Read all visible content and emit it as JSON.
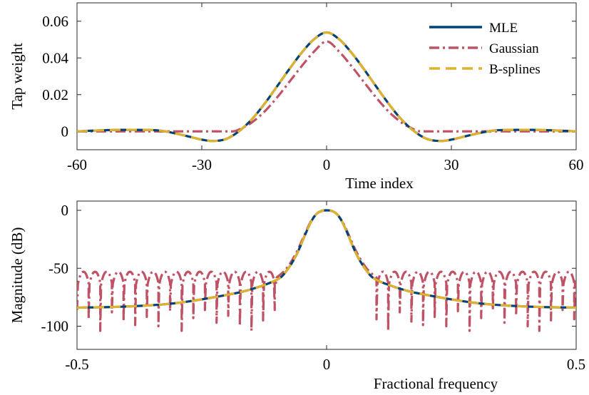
{
  "chart_data": [
    {
      "type": "line",
      "xlabel": "Time index",
      "ylabel": "Tap weight",
      "xlim": [
        -60,
        60
      ],
      "ylim": [
        -0.01,
        0.07
      ],
      "xticks": [
        "-60",
        "-30",
        "0",
        "30",
        "60"
      ],
      "yticks": [
        "0",
        "0.02",
        "0.04",
        "0.06"
      ],
      "legend": {
        "placement": "top-right",
        "entries": [
          "MLE",
          "Gaussian",
          "B-splines"
        ]
      },
      "series": [
        {
          "name": "MLE",
          "color": "#00427a",
          "style": "solid",
          "x": [
            -60,
            -55,
            -50,
            -45,
            -40,
            -35,
            -30,
            -27,
            -24,
            -21,
            -18,
            -15,
            -12,
            -9,
            -6,
            -3,
            0,
            3,
            6,
            9,
            12,
            15,
            18,
            21,
            24,
            27,
            30,
            35,
            40,
            45,
            50,
            55,
            60
          ],
          "y": [
            0.0,
            0.0005,
            0.0008,
            0.0008,
            0.0004,
            -0.0018,
            -0.0045,
            -0.0052,
            -0.004,
            0.0002,
            0.0065,
            0.0148,
            0.0242,
            0.0338,
            0.0428,
            0.0502,
            0.0539,
            0.0502,
            0.0428,
            0.0338,
            0.0242,
            0.0148,
            0.0065,
            0.0002,
            -0.004,
            -0.0052,
            -0.0045,
            -0.0018,
            0.0004,
            0.0008,
            0.0008,
            0.0005,
            0.0
          ]
        },
        {
          "name": "Gaussian",
          "color": "#c05266",
          "style": "dashdot",
          "x": [
            -60,
            -45,
            -30,
            -24,
            -22,
            -20,
            -18,
            -15,
            -12,
            -9,
            -6,
            -3,
            0,
            3,
            6,
            9,
            12,
            15,
            18,
            20,
            22,
            24,
            30,
            45,
            60
          ],
          "y": [
            0.0,
            0.0,
            0.0,
            0.0,
            0.0002,
            0.0022,
            0.0048,
            0.0106,
            0.0182,
            0.0268,
            0.0355,
            0.0435,
            0.049,
            0.0435,
            0.0355,
            0.0268,
            0.0182,
            0.0106,
            0.0048,
            0.0022,
            0.0002,
            0.0,
            0.0,
            0.0,
            0.0
          ]
        },
        {
          "name": "B-splines",
          "color": "#e0b12c",
          "style": "dashed",
          "x": [
            -60,
            -55,
            -50,
            -45,
            -40,
            -35,
            -30,
            -27,
            -24,
            -21,
            -18,
            -15,
            -12,
            -9,
            -6,
            -3,
            0,
            3,
            6,
            9,
            12,
            15,
            18,
            21,
            24,
            27,
            30,
            35,
            40,
            45,
            50,
            55,
            60
          ],
          "y": [
            0.0,
            0.0005,
            0.0008,
            0.0008,
            0.0004,
            -0.0018,
            -0.0045,
            -0.0052,
            -0.004,
            0.0002,
            0.0065,
            0.0148,
            0.0242,
            0.0338,
            0.0428,
            0.0502,
            0.0539,
            0.0502,
            0.0428,
            0.0338,
            0.0242,
            0.0148,
            0.0065,
            0.0002,
            -0.004,
            -0.0052,
            -0.0045,
            -0.0018,
            0.0004,
            0.0008,
            0.0008,
            0.0005,
            0.0
          ]
        }
      ]
    },
    {
      "type": "line",
      "xlabel": "Fractional frequency",
      "ylabel": "Magnitude (dB)",
      "xlim": [
        -0.5,
        0.5
      ],
      "ylim": [
        -120,
        8
      ],
      "xticks": [
        "-0.5",
        "0",
        "0.5"
      ],
      "yticks": [
        "0",
        "-50",
        "-100"
      ],
      "series": [
        {
          "name": "MLE",
          "color": "#00427a",
          "style": "solid",
          "x": [
            -0.5,
            -0.4,
            -0.3,
            -0.2,
            -0.15,
            -0.1,
            -0.08,
            -0.06,
            -0.04,
            -0.03,
            -0.02,
            -0.01,
            0,
            0.01,
            0.02,
            0.03,
            0.04,
            0.06,
            0.08,
            0.1,
            0.15,
            0.2,
            0.3,
            0.4,
            0.5
          ],
          "y": [
            -84,
            -83,
            -80,
            -73,
            -68,
            -60,
            -52,
            -38,
            -18,
            -9,
            -3,
            -0.5,
            0,
            -0.5,
            -3,
            -9,
            -18,
            -38,
            -52,
            -60,
            -68,
            -73,
            -80,
            -83,
            -84
          ]
        },
        {
          "name": "B-splines",
          "color": "#e0b12c",
          "style": "dashed",
          "x": [
            -0.5,
            -0.4,
            -0.3,
            -0.2,
            -0.15,
            -0.1,
            -0.08,
            -0.06,
            -0.04,
            -0.03,
            -0.02,
            -0.01,
            0,
            0.01,
            0.02,
            0.03,
            0.04,
            0.06,
            0.08,
            0.1,
            0.15,
            0.2,
            0.3,
            0.4,
            0.5
          ],
          "y": [
            -84,
            -83,
            -80,
            -73,
            -68,
            -60,
            -52,
            -38,
            -18,
            -9,
            -3,
            -0.5,
            0,
            -0.5,
            -3,
            -9,
            -18,
            -38,
            -52,
            -60,
            -68,
            -73,
            -80,
            -83,
            -84
          ]
        },
        {
          "name": "Gaussian",
          "color": "#c05266",
          "style": "dashdot",
          "mainlobe": {
            "x": [
              -0.1,
              -0.08,
              -0.06,
              -0.04,
              -0.03,
              -0.02,
              -0.01,
              0,
              0.01,
              0.02,
              0.03,
              0.04,
              0.06,
              0.08,
              0.1
            ],
            "y": [
              -58,
              -50,
              -36,
              -17,
              -8.5,
              -3,
              -0.6,
              0,
              -0.6,
              -3,
              -8.5,
              -17,
              -36,
              -50,
              -58
            ]
          },
          "sidelobe_peaks_db": -53,
          "notch_spacing": 0.0233,
          "notch_depths_db": [
            -86,
            -94,
            -104,
            -88,
            -96,
            -99,
            -92,
            -100,
            -87,
            -104,
            -93,
            -86,
            -97,
            -91,
            -100,
            -104,
            -95
          ]
        }
      ]
    }
  ]
}
